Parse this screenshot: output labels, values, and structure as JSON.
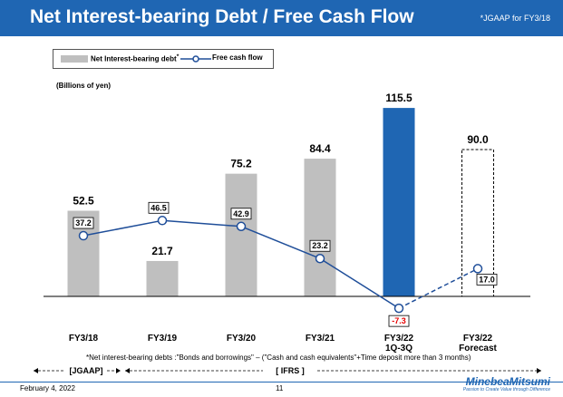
{
  "header": {
    "title": "Net Interest-bearing Debt / Free Cash Flow",
    "gaap_note": "*JGAAP for FY3/18"
  },
  "legend": {
    "bar_label": "Net Interest-bearing debt",
    "bar_mark": "*",
    "line_label": "Free cash flow"
  },
  "unit_label": "(Billions of yen)",
  "colors": {
    "header": "#1f66b3",
    "gray_bar": "#bfbfbf",
    "highlight_bar": "#1f66b3",
    "line": "#1f4e99",
    "negative_label": "#e60000"
  },
  "chart_data": {
    "type": "bar",
    "categories": [
      "FY3/18",
      "FY3/19",
      "FY3/20",
      "FY3/21",
      "FY3/22\n1Q-3Q",
      "FY3/22\nForecast"
    ],
    "series": [
      {
        "name": "Net Interest-bearing debt",
        "type": "bar",
        "values": [
          52.5,
          21.7,
          75.2,
          84.4,
          115.5,
          90.0
        ],
        "labels": [
          "52.5",
          "21.7",
          "75.2",
          "84.4",
          "115.5",
          "90.0"
        ],
        "styles": [
          "gray",
          "gray",
          "gray",
          "gray",
          "blue",
          "dashed-outline"
        ]
      },
      {
        "name": "Free cash flow",
        "type": "line",
        "values": [
          37.2,
          46.5,
          42.9,
          23.2,
          -7.3,
          17.0
        ],
        "labels": [
          "37.2",
          "46.5",
          "42.9",
          "23.2",
          "-7.3",
          "17.0"
        ],
        "dashed_segment_from_index": 4
      }
    ],
    "ylim": [
      -10,
      125
    ],
    "grid": false,
    "legend_position": "top-left"
  },
  "period_markers": {
    "jgaap": "[JGAAP]",
    "ifrs": "[ IFRS ]"
  },
  "footnote": "*Net interest-bearing debts :\"Bonds and borrowings\" – (\"Cash and cash equivalents\"+Time deposit more than 3 months)",
  "footer": {
    "date": "February 4, 2022",
    "page": "11",
    "logo_name": "MinebeaMitsumi",
    "logo_tagline": "Passion to Create Value through Difference"
  }
}
